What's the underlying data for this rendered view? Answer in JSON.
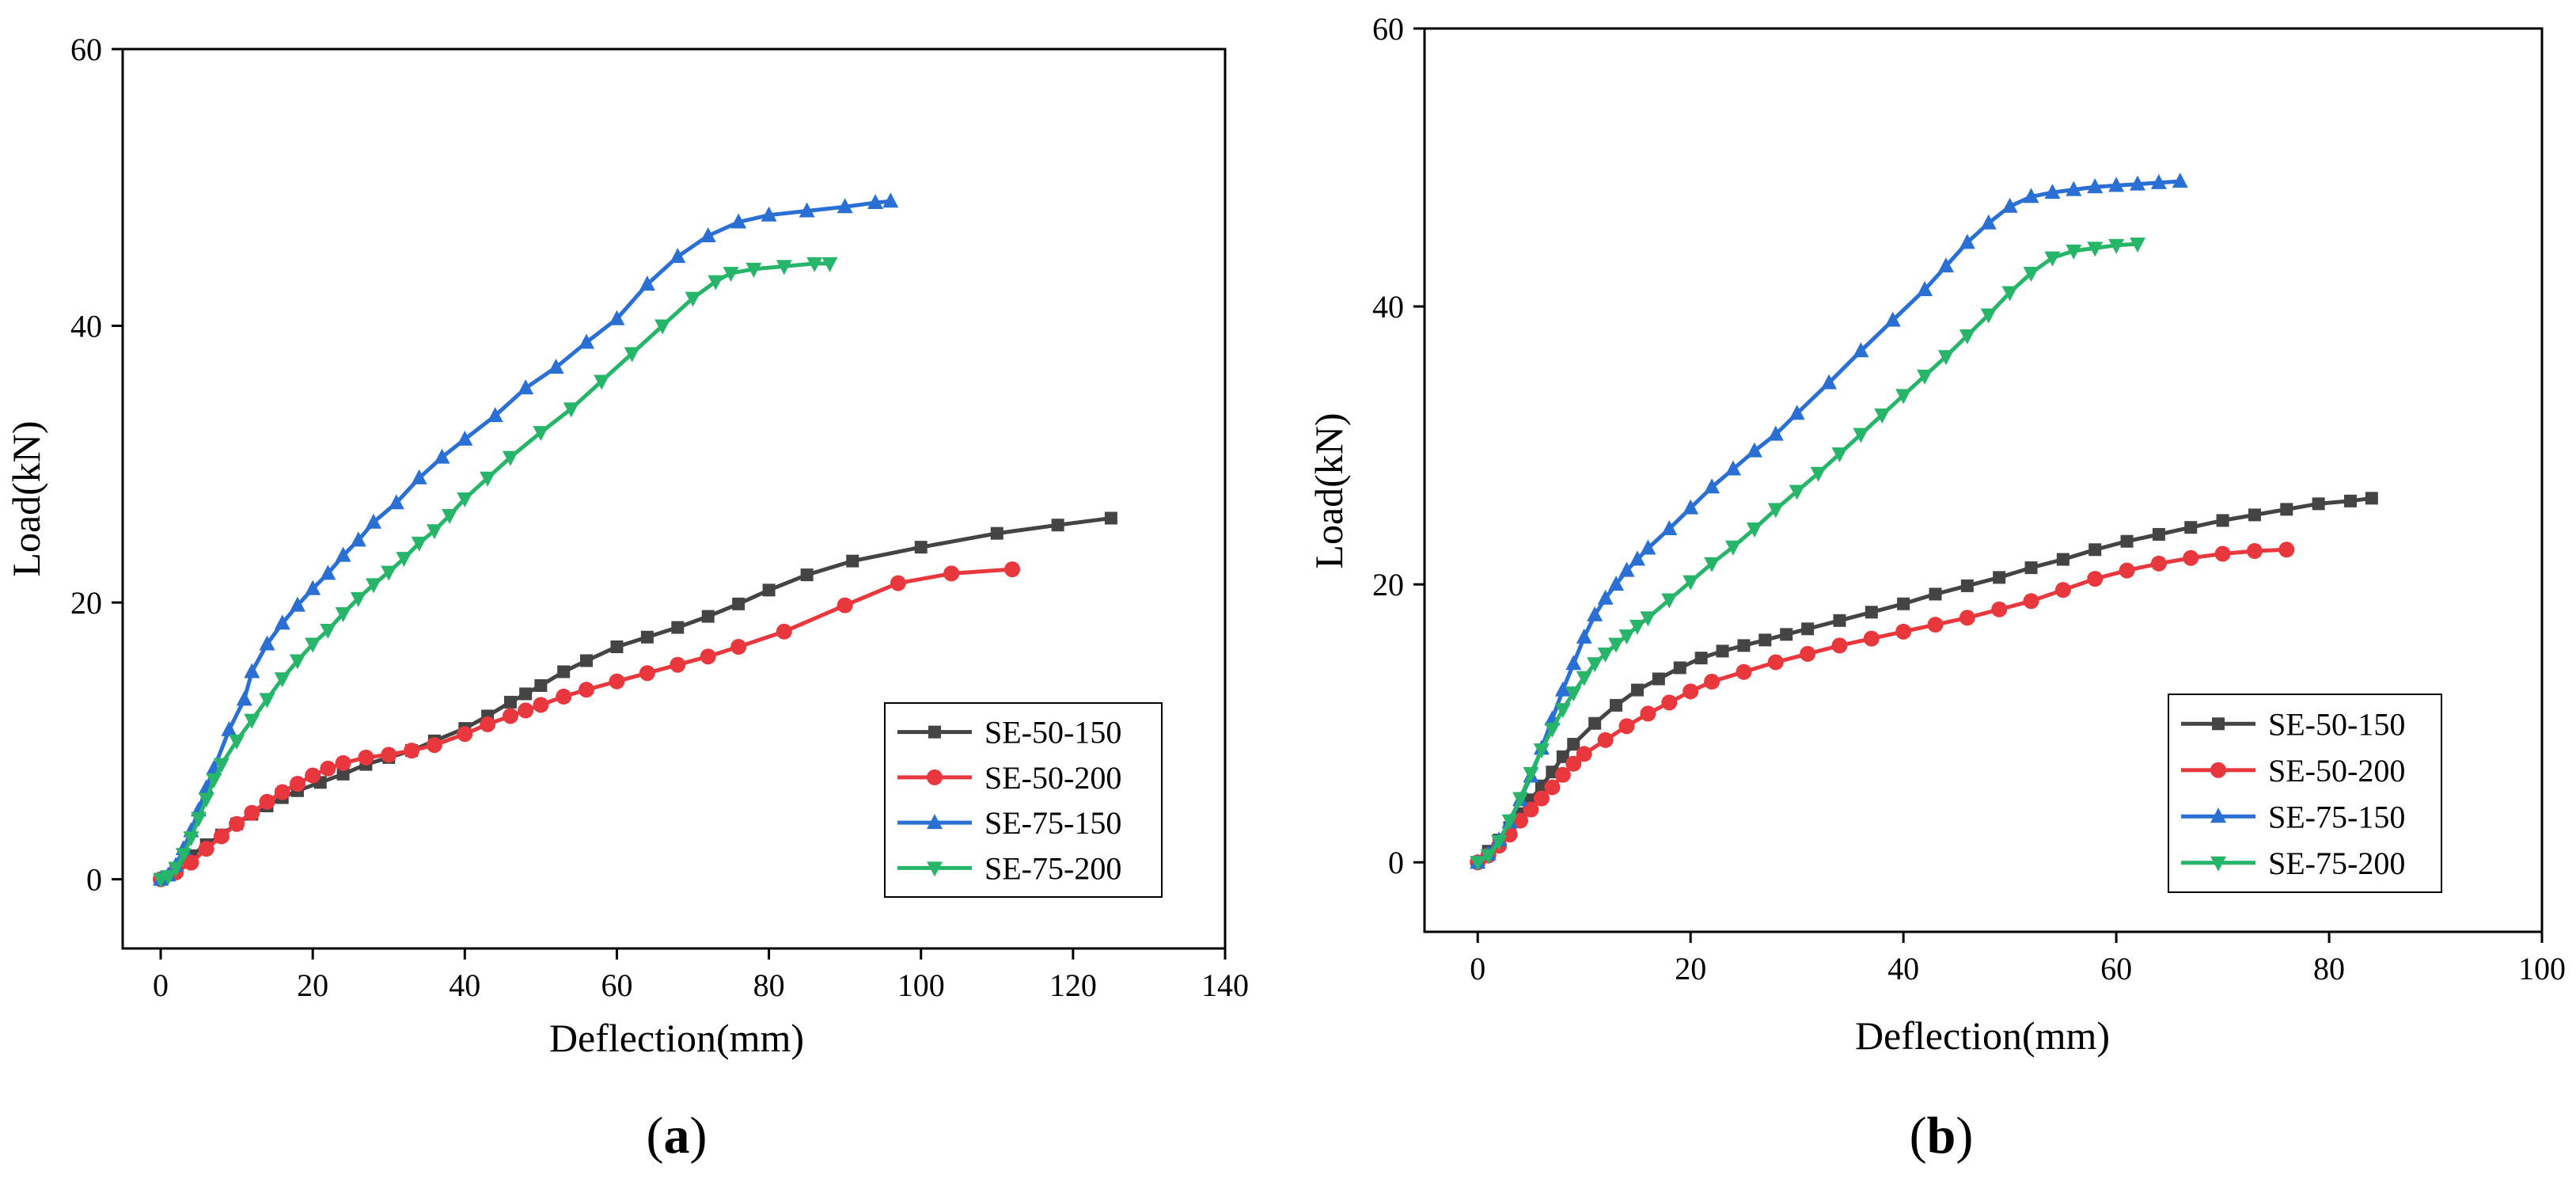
{
  "figure": {
    "panels": [
      "(a)",
      "(b)"
    ],
    "panel_letters": [
      "a",
      "b"
    ]
  },
  "chart_data": [
    {
      "type": "line",
      "panel": "(a)",
      "title": "",
      "xlabel": "Deflection(mm)",
      "ylabel": "Load(kN)",
      "xlim": [
        -5,
        140
      ],
      "ylim": [
        -5,
        60
      ],
      "xticks": [
        0,
        20,
        40,
        60,
        80,
        100,
        120,
        140
      ],
      "yticks": [
        0,
        20,
        40,
        60
      ],
      "grid": false,
      "legend": "bottom-right",
      "series": [
        {
          "name": "SE-50-150",
          "color": "#444444",
          "marker": "square",
          "x": [
            0,
            2,
            4,
            6,
            8,
            10,
            12,
            14,
            16,
            18,
            21,
            24,
            27,
            30,
            33,
            36,
            40,
            43,
            46,
            48,
            50,
            53,
            56,
            60,
            64,
            68,
            72,
            76,
            80,
            85,
            91,
            100,
            110,
            118,
            125
          ],
          "y": [
            0,
            0.8,
            1.7,
            2.5,
            3.2,
            4.0,
            4.7,
            5.3,
            5.9,
            6.4,
            7.0,
            7.6,
            8.3,
            8.8,
            9.3,
            10.0,
            10.9,
            11.8,
            12.8,
            13.4,
            14.0,
            15.0,
            15.8,
            16.8,
            17.5,
            18.2,
            19.0,
            19.9,
            20.9,
            22.0,
            23.0,
            24.0,
            25.0,
            25.6,
            26.1
          ]
        },
        {
          "name": "SE-50-200",
          "color": "#e8383d",
          "marker": "circle",
          "x": [
            0,
            2,
            4,
            6,
            8,
            10,
            12,
            14,
            16,
            18,
            20,
            22,
            24,
            27,
            30,
            33,
            36,
            40,
            43,
            46,
            48,
            50,
            53,
            56,
            60,
            64,
            68,
            72,
            76,
            82,
            90,
            97,
            104,
            112
          ],
          "y": [
            0,
            0.5,
            1.2,
            2.2,
            3.1,
            4.0,
            4.8,
            5.6,
            6.3,
            6.9,
            7.5,
            8.0,
            8.4,
            8.8,
            9.0,
            9.3,
            9.7,
            10.5,
            11.2,
            11.8,
            12.2,
            12.6,
            13.2,
            13.7,
            14.3,
            14.9,
            15.5,
            16.1,
            16.8,
            17.9,
            19.8,
            21.4,
            22.1,
            22.4
          ]
        },
        {
          "name": "SE-75-150",
          "color": "#2a6fd4",
          "marker": "triangle-up",
          "x": [
            0,
            1,
            2,
            3,
            4,
            5,
            6,
            7,
            9,
            11,
            12,
            14,
            16,
            18,
            20,
            22,
            24,
            26,
            28,
            31,
            34,
            37,
            40,
            44,
            48,
            52,
            56,
            60,
            64,
            68,
            72,
            76,
            80,
            85,
            90,
            94,
            96
          ],
          "y": [
            0,
            0.3,
            1.0,
            2.2,
            3.5,
            5.0,
            6.6,
            8.0,
            10.8,
            13.0,
            15.0,
            17.0,
            18.5,
            19.8,
            21.0,
            22.1,
            23.4,
            24.5,
            25.8,
            27.2,
            29.0,
            30.5,
            31.8,
            33.5,
            35.5,
            37.0,
            38.8,
            40.5,
            43.0,
            45.0,
            46.5,
            47.5,
            48.0,
            48.3,
            48.6,
            48.9,
            49.0
          ]
        },
        {
          "name": "SE-75-200",
          "color": "#27b56a",
          "marker": "triangle-down",
          "x": [
            0,
            1,
            2,
            3,
            4,
            5,
            6,
            7,
            8,
            10,
            12,
            14,
            16,
            18,
            20,
            22,
            24,
            26,
            28,
            30,
            32,
            34,
            36,
            38,
            40,
            43,
            46,
            50,
            54,
            58,
            62,
            66,
            70,
            73,
            75,
            78,
            82,
            86,
            88
          ],
          "y": [
            0,
            0.2,
            0.8,
            1.8,
            3.0,
            4.4,
            5.8,
            7.2,
            8.3,
            10.0,
            11.5,
            13.0,
            14.5,
            15.8,
            17.0,
            18.0,
            19.2,
            20.3,
            21.3,
            22.2,
            23.2,
            24.3,
            25.2,
            26.3,
            27.5,
            29.0,
            30.5,
            32.3,
            34.0,
            36.0,
            38.0,
            40.0,
            42.0,
            43.2,
            43.8,
            44.1,
            44.3,
            44.5,
            44.5
          ]
        }
      ]
    },
    {
      "type": "line",
      "panel": "(b)",
      "title": "",
      "xlabel": "Deflection(mm)",
      "ylabel": "Load(kN)",
      "xlim": [
        -5,
        100
      ],
      "ylim": [
        -5,
        60
      ],
      "xticks": [
        0,
        20,
        40,
        60,
        80,
        100
      ],
      "yticks": [
        0,
        20,
        40,
        60
      ],
      "grid": false,
      "legend": "bottom-right",
      "series": [
        {
          "name": "SE-50-150",
          "color": "#444444",
          "marker": "square",
          "x": [
            0,
            1,
            2,
            3,
            4,
            5,
            6,
            7,
            8,
            9,
            11,
            13,
            15,
            17,
            19,
            21,
            23,
            25,
            27,
            29,
            31,
            34,
            37,
            40,
            43,
            46,
            49,
            52,
            55,
            58,
            61,
            64,
            67,
            70,
            73,
            76,
            79,
            82,
            84
          ],
          "y": [
            0,
            0.8,
            1.6,
            2.5,
            3.5,
            4.5,
            5.5,
            6.5,
            7.6,
            8.5,
            10.0,
            11.3,
            12.4,
            13.2,
            14.0,
            14.7,
            15.2,
            15.6,
            16.0,
            16.4,
            16.8,
            17.4,
            18.0,
            18.6,
            19.3,
            19.9,
            20.5,
            21.2,
            21.8,
            22.5,
            23.1,
            23.6,
            24.1,
            24.6,
            25.0,
            25.4,
            25.8,
            26.0,
            26.2
          ]
        },
        {
          "name": "SE-50-200",
          "color": "#e8383d",
          "marker": "circle",
          "x": [
            0,
            1,
            2,
            3,
            4,
            5,
            6,
            7,
            8,
            9,
            10,
            12,
            14,
            16,
            18,
            20,
            22,
            25,
            28,
            31,
            34,
            37,
            40,
            43,
            46,
            49,
            52,
            55,
            58,
            61,
            64,
            67,
            70,
            73,
            76
          ],
          "y": [
            0,
            0.5,
            1.2,
            2.0,
            3.0,
            3.8,
            4.6,
            5.4,
            6.3,
            7.1,
            7.8,
            8.8,
            9.8,
            10.7,
            11.5,
            12.3,
            13.0,
            13.7,
            14.4,
            15.0,
            15.6,
            16.1,
            16.6,
            17.1,
            17.6,
            18.2,
            18.8,
            19.6,
            20.4,
            21.0,
            21.5,
            21.9,
            22.2,
            22.4,
            22.5
          ]
        },
        {
          "name": "SE-75-150",
          "color": "#2a6fd4",
          "marker": "triangle-up",
          "x": [
            0,
            1,
            2,
            3,
            4,
            5,
            6,
            7,
            8,
            9,
            10,
            11,
            12,
            13,
            14,
            15,
            16,
            18,
            20,
            22,
            24,
            26,
            28,
            30,
            33,
            36,
            39,
            42,
            44,
            46,
            48,
            50,
            52,
            54,
            56,
            58,
            60,
            62,
            64,
            66
          ],
          "y": [
            0,
            0.6,
            1.6,
            2.9,
            4.5,
            6.2,
            8.2,
            10.3,
            12.4,
            14.3,
            16.2,
            17.8,
            19.0,
            20.0,
            21.0,
            21.8,
            22.6,
            24.0,
            25.5,
            27.0,
            28.3,
            29.6,
            30.8,
            32.3,
            34.5,
            36.8,
            39.0,
            41.2,
            42.9,
            44.6,
            46.0,
            47.2,
            47.9,
            48.2,
            48.4,
            48.6,
            48.7,
            48.8,
            48.9,
            49.0
          ]
        },
        {
          "name": "SE-75-200",
          "color": "#27b56a",
          "marker": "triangle-down",
          "x": [
            0,
            1,
            2,
            3,
            4,
            5,
            6,
            7,
            8,
            9,
            10,
            11,
            12,
            13,
            14,
            15,
            16,
            18,
            20,
            22,
            24,
            26,
            28,
            30,
            32,
            34,
            36,
            38,
            40,
            42,
            44,
            46,
            48,
            50,
            52,
            54,
            56,
            58,
            60,
            62
          ],
          "y": [
            0,
            0.5,
            1.5,
            3.0,
            4.6,
            6.4,
            8.1,
            9.6,
            11.0,
            12.2,
            13.3,
            14.3,
            15.0,
            15.7,
            16.3,
            17.0,
            17.6,
            18.9,
            20.2,
            21.5,
            22.7,
            24.0,
            25.4,
            26.7,
            28.0,
            29.4,
            30.8,
            32.2,
            33.6,
            35.0,
            36.4,
            37.9,
            39.4,
            41.0,
            42.4,
            43.5,
            44.0,
            44.2,
            44.4,
            44.5
          ]
        }
      ]
    }
  ]
}
